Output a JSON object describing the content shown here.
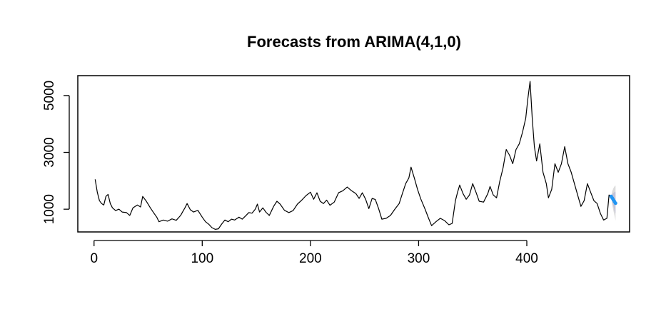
{
  "chart_data": {
    "type": "line",
    "title": "Forecasts from ARIMA(4,1,0)",
    "xlabel": "",
    "ylabel": "",
    "xlim": [
      -15,
      495
    ],
    "ylim": [
      200,
      5700
    ],
    "x_ticks": [
      {
        "value": 0,
        "label": "0"
      },
      {
        "value": 100,
        "label": "100"
      },
      {
        "value": 200,
        "label": "200"
      },
      {
        "value": 300,
        "label": "300"
      },
      {
        "value": 400,
        "label": "400"
      }
    ],
    "y_ticks": [
      {
        "value": 1000,
        "label": "1000"
      },
      {
        "value": 3000,
        "label": "3000"
      },
      {
        "value": 5000,
        "label": "5000"
      }
    ],
    "grid": false,
    "legend": "none",
    "colors": {
      "series": "#000000",
      "forecast_mean": "#2196f3",
      "interval_80": "#c4c4d8",
      "interval_95": "#dcdcdc"
    },
    "series": [
      {
        "kind": "observed",
        "points": [
          [
            1,
            2050
          ],
          [
            3,
            1600
          ],
          [
            5,
            1300
          ],
          [
            7,
            1200
          ],
          [
            9,
            1150
          ],
          [
            11,
            1450
          ],
          [
            13,
            1520
          ],
          [
            15,
            1200
          ],
          [
            17,
            1050
          ],
          [
            20,
            950
          ],
          [
            23,
            1000
          ],
          [
            26,
            900
          ],
          [
            30,
            880
          ],
          [
            33,
            780
          ],
          [
            36,
            1050
          ],
          [
            40,
            1150
          ],
          [
            43,
            1080
          ],
          [
            45,
            1450
          ],
          [
            48,
            1300
          ],
          [
            52,
            1050
          ],
          [
            55,
            880
          ],
          [
            58,
            720
          ],
          [
            60,
            560
          ],
          [
            64,
            620
          ],
          [
            68,
            580
          ],
          [
            72,
            660
          ],
          [
            76,
            610
          ],
          [
            80,
            780
          ],
          [
            84,
            1050
          ],
          [
            86,
            1200
          ],
          [
            89,
            980
          ],
          [
            92,
            900
          ],
          [
            96,
            960
          ],
          [
            100,
            720
          ],
          [
            103,
            560
          ],
          [
            106,
            470
          ],
          [
            109,
            350
          ],
          [
            112,
            290
          ],
          [
            115,
            310
          ],
          [
            118,
            480
          ],
          [
            121,
            620
          ],
          [
            124,
            560
          ],
          [
            127,
            650
          ],
          [
            130,
            620
          ],
          [
            134,
            720
          ],
          [
            137,
            650
          ],
          [
            140,
            760
          ],
          [
            143,
            880
          ],
          [
            146,
            860
          ],
          [
            149,
            1000
          ],
          [
            151,
            1180
          ],
          [
            153,
            900
          ],
          [
            156,
            1050
          ],
          [
            159,
            890
          ],
          [
            162,
            780
          ],
          [
            166,
            1100
          ],
          [
            169,
            1280
          ],
          [
            172,
            1180
          ],
          [
            176,
            960
          ],
          [
            180,
            880
          ],
          [
            184,
            950
          ],
          [
            188,
            1180
          ],
          [
            192,
            1320
          ],
          [
            196,
            1480
          ],
          [
            200,
            1600
          ],
          [
            203,
            1350
          ],
          [
            206,
            1580
          ],
          [
            209,
            1280
          ],
          [
            212,
            1200
          ],
          [
            215,
            1320
          ],
          [
            218,
            1140
          ],
          [
            222,
            1250
          ],
          [
            226,
            1580
          ],
          [
            230,
            1650
          ],
          [
            234,
            1780
          ],
          [
            238,
            1650
          ],
          [
            242,
            1550
          ],
          [
            245,
            1380
          ],
          [
            248,
            1580
          ],
          [
            251,
            1350
          ],
          [
            254,
            1020
          ],
          [
            257,
            1380
          ],
          [
            260,
            1340
          ],
          [
            263,
            1020
          ],
          [
            266,
            650
          ],
          [
            270,
            680
          ],
          [
            274,
            780
          ],
          [
            278,
            1000
          ],
          [
            282,
            1200
          ],
          [
            285,
            1550
          ],
          [
            288,
            1900
          ],
          [
            291,
            2100
          ],
          [
            293,
            2480
          ],
          [
            296,
            2100
          ],
          [
            299,
            1700
          ],
          [
            302,
            1360
          ],
          [
            306,
            1000
          ],
          [
            309,
            700
          ],
          [
            312,
            420
          ],
          [
            316,
            560
          ],
          [
            320,
            680
          ],
          [
            324,
            600
          ],
          [
            328,
            450
          ],
          [
            331,
            500
          ],
          [
            334,
            1300
          ],
          [
            336,
            1600
          ],
          [
            338,
            1850
          ],
          [
            341,
            1550
          ],
          [
            344,
            1350
          ],
          [
            347,
            1500
          ],
          [
            350,
            1900
          ],
          [
            353,
            1600
          ],
          [
            356,
            1280
          ],
          [
            360,
            1250
          ],
          [
            364,
            1550
          ],
          [
            366,
            1800
          ],
          [
            369,
            1500
          ],
          [
            372,
            1400
          ],
          [
            375,
            1980
          ],
          [
            378,
            2450
          ],
          [
            381,
            3100
          ],
          [
            384,
            2900
          ],
          [
            387,
            2600
          ],
          [
            390,
            3100
          ],
          [
            393,
            3300
          ],
          [
            396,
            3700
          ],
          [
            399,
            4200
          ],
          [
            401,
            4900
          ],
          [
            403,
            5500
          ],
          [
            405,
            4200
          ],
          [
            407,
            3200
          ],
          [
            409,
            2700
          ],
          [
            412,
            3300
          ],
          [
            415,
            2300
          ],
          [
            418,
            1900
          ],
          [
            420,
            1400
          ],
          [
            423,
            1700
          ],
          [
            426,
            2600
          ],
          [
            429,
            2300
          ],
          [
            432,
            2600
          ],
          [
            435,
            3200
          ],
          [
            438,
            2600
          ],
          [
            441,
            2300
          ],
          [
            444,
            1900
          ],
          [
            447,
            1500
          ],
          [
            450,
            1100
          ],
          [
            453,
            1300
          ],
          [
            456,
            1900
          ],
          [
            459,
            1600
          ],
          [
            462,
            1300
          ],
          [
            465,
            1200
          ],
          [
            468,
            850
          ],
          [
            471,
            620
          ],
          [
            474,
            680
          ],
          [
            476,
            1500
          ],
          [
            478,
            1450
          ]
        ]
      },
      {
        "kind": "forecast",
        "points": [
          [
            478,
            1450
          ],
          [
            479,
            1390
          ],
          [
            480,
            1330
          ],
          [
            481,
            1270
          ],
          [
            482,
            1210
          ]
        ],
        "lower_80": [
          [
            478,
            1450
          ],
          [
            479,
            1250
          ],
          [
            480,
            1100
          ],
          [
            481,
            950
          ],
          [
            482,
            850
          ]
        ],
        "upper_80": [
          [
            478,
            1450
          ],
          [
            479,
            1530
          ],
          [
            480,
            1570
          ],
          [
            481,
            1600
          ],
          [
            482,
            1620
          ]
        ],
        "lower_95": [
          [
            478,
            1450
          ],
          [
            479,
            1150
          ],
          [
            480,
            950
          ],
          [
            481,
            780
          ],
          [
            482,
            600
          ]
        ],
        "upper_95": [
          [
            478,
            1450
          ],
          [
            479,
            1640
          ],
          [
            480,
            1740
          ],
          [
            481,
            1800
          ],
          [
            482,
            1840
          ]
        ]
      }
    ]
  }
}
